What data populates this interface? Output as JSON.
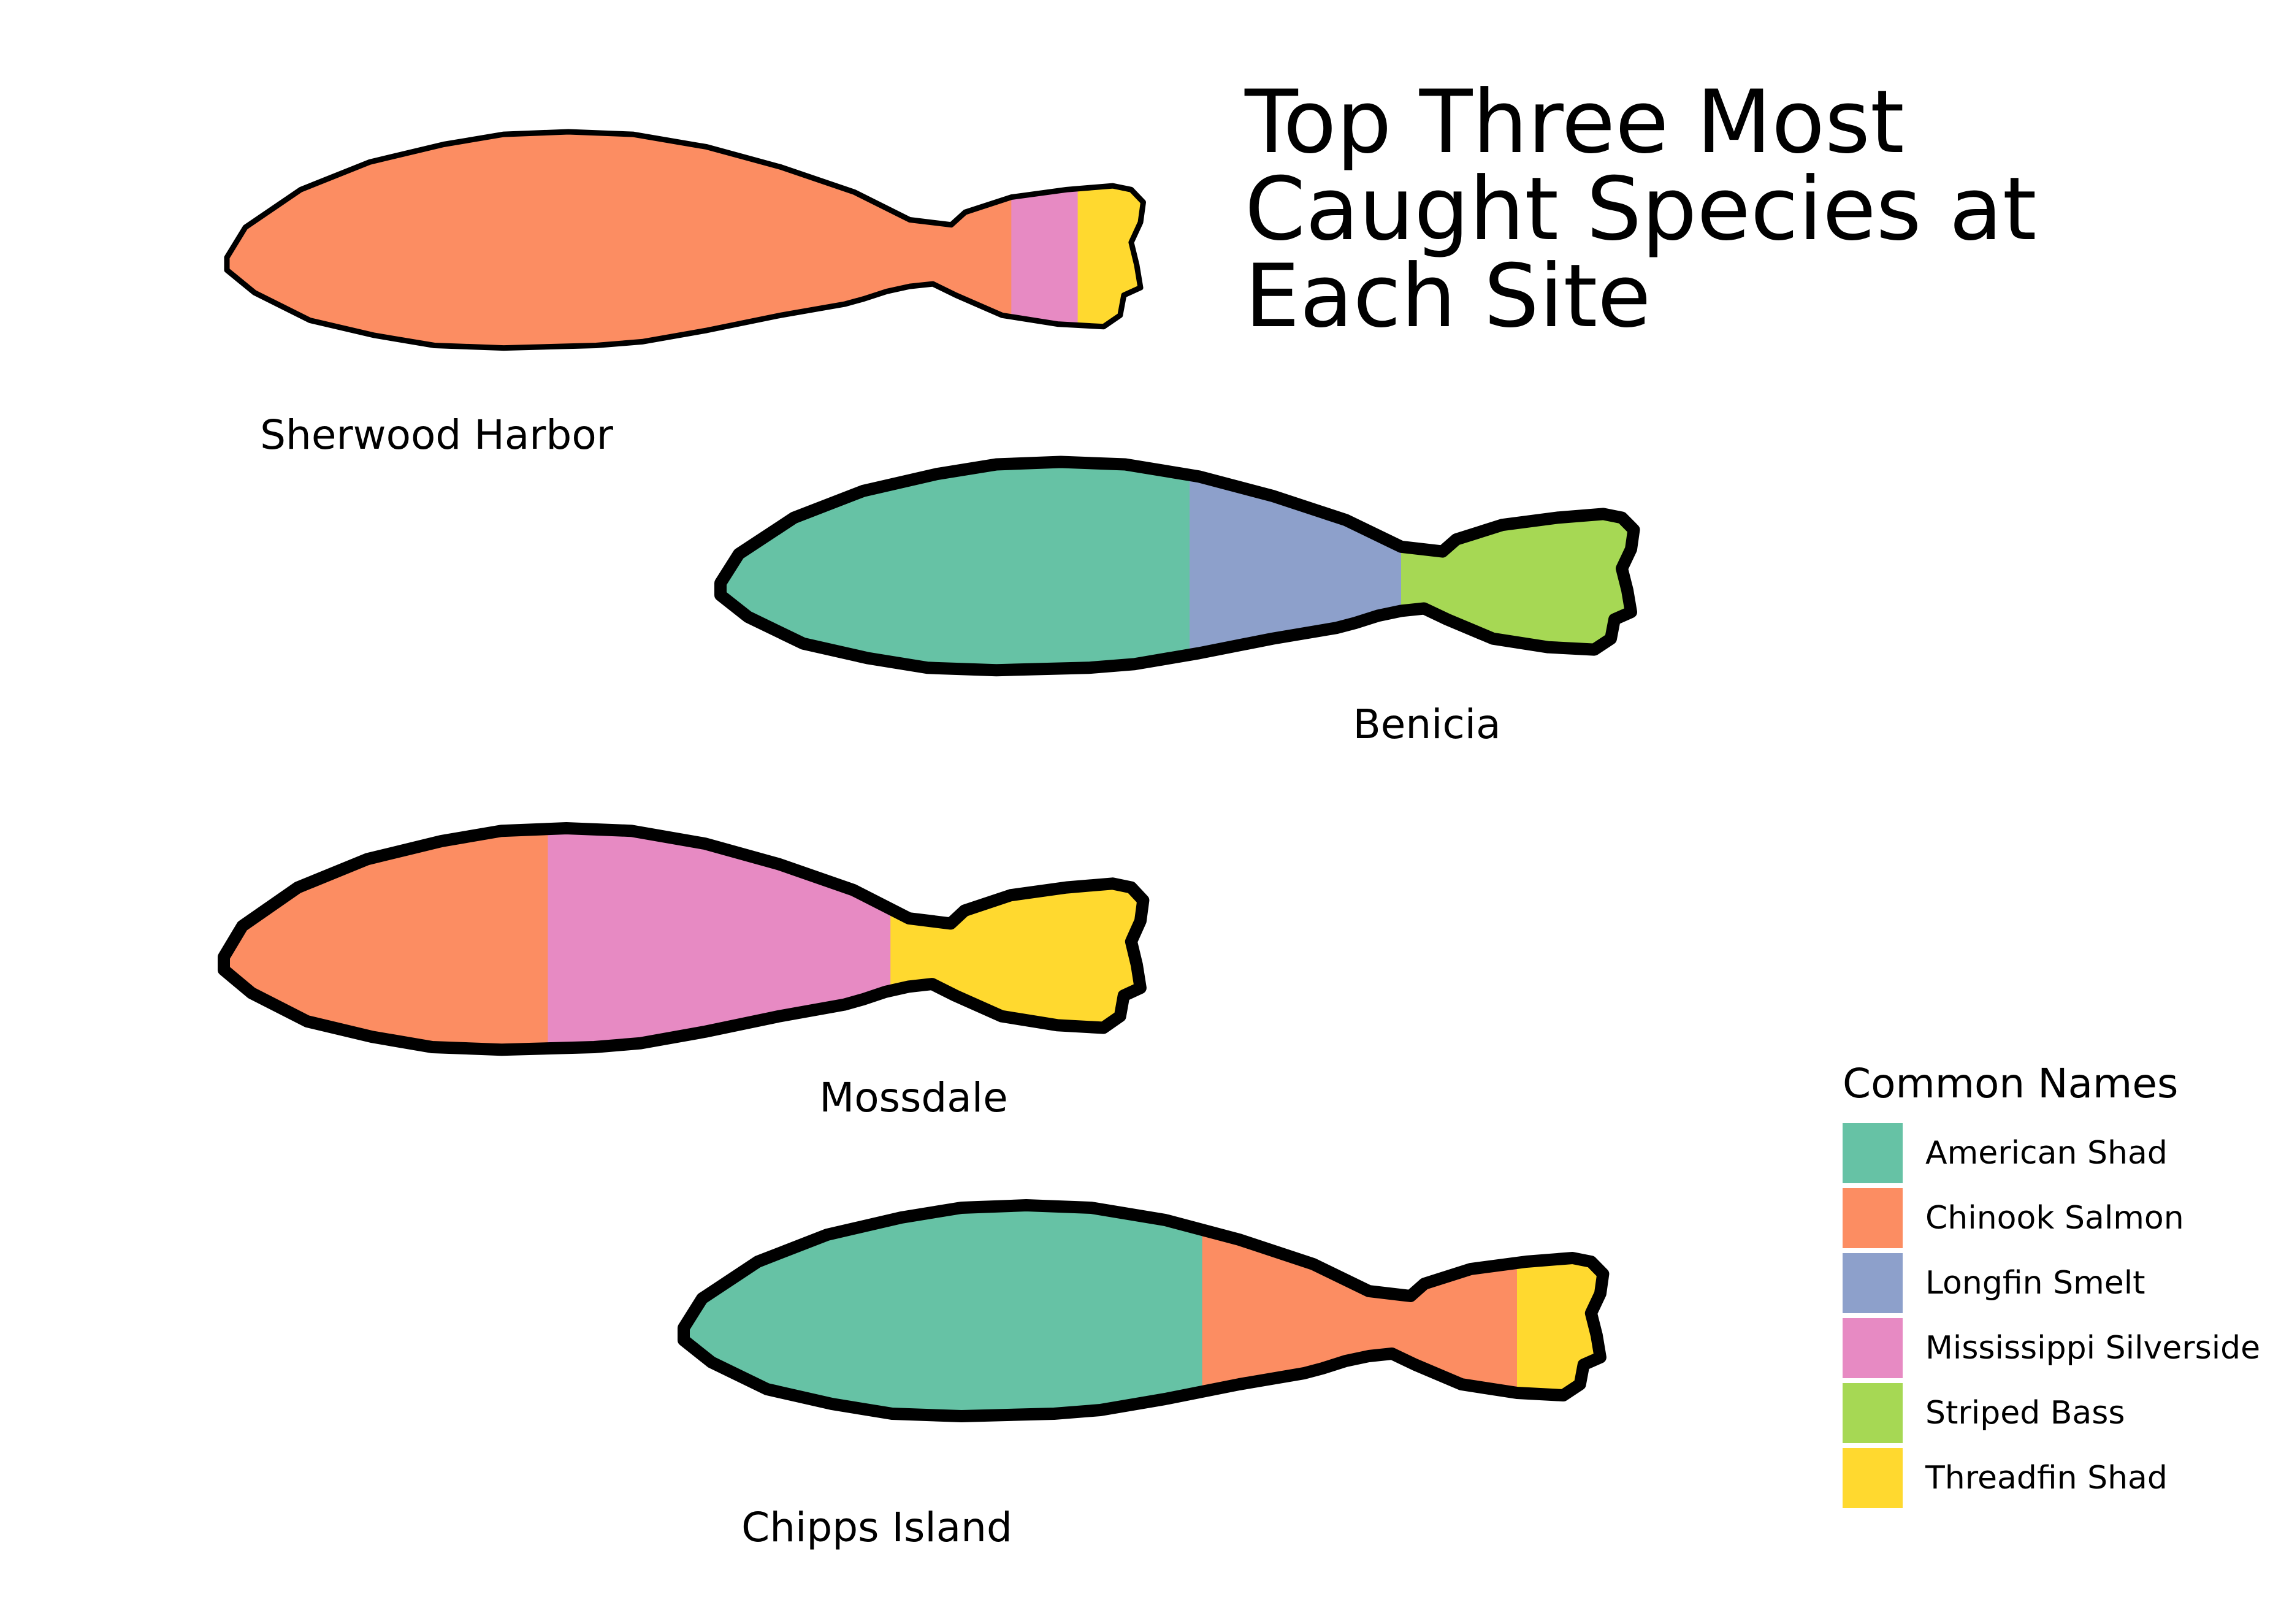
{
  "chart_data": {
    "type": "bar",
    "title_lines": [
      "Top Three Most",
      "Caught Species at",
      "Each Site"
    ],
    "legend": {
      "title": "Common Names",
      "position": "right",
      "entries": [
        {
          "name": "American Shad",
          "color": "#66c2a5"
        },
        {
          "name": "Chinook Salmon",
          "color": "#fc8d62"
        },
        {
          "name": "Longfin Smelt",
          "color": "#8da0cb"
        },
        {
          "name": "Mississippi Silverside",
          "color": "#e78ac3"
        },
        {
          "name": "Striped Bass",
          "color": "#a6d854"
        },
        {
          "name": "Threadfin Shad",
          "color": "#ffd92f"
        }
      ]
    },
    "sites": [
      {
        "name": "Sherwood Harbor",
        "segments": [
          {
            "species": "Chinook Salmon",
            "share": 0.85
          },
          {
            "species": "Mississippi Silverside",
            "share": 0.072
          },
          {
            "species": "Threadfin Shad",
            "share": 0.078
          }
        ]
      },
      {
        "name": "Benicia",
        "segments": [
          {
            "species": "American Shad",
            "share": 0.51
          },
          {
            "species": "Longfin Smelt",
            "share": 0.23
          },
          {
            "species": "Striped Bass",
            "share": 0.26
          }
        ]
      },
      {
        "name": "Mossdale",
        "segments": [
          {
            "species": "Chinook Salmon",
            "share": 0.35
          },
          {
            "species": "Mississippi Silverside",
            "share": 0.37
          },
          {
            "species": "Threadfin Shad",
            "share": 0.28
          }
        ]
      },
      {
        "name": "Chipps Island",
        "segments": [
          {
            "species": "American Shad",
            "share": 0.56
          },
          {
            "species": "Chinook Salmon",
            "share": 0.34
          },
          {
            "species": "Threadfin Shad",
            "share": 0.1
          }
        ]
      }
    ]
  }
}
